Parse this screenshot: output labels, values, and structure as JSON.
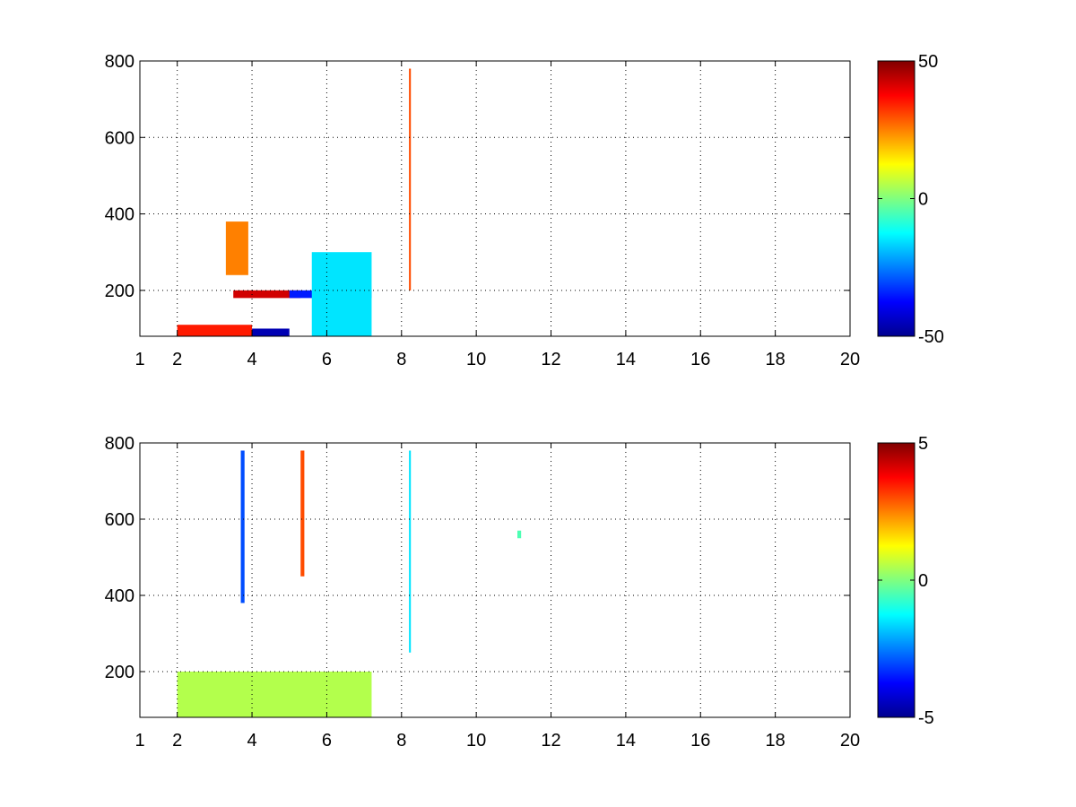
{
  "chart_data": [
    {
      "type": "heatmap",
      "title": "",
      "xlabel": "",
      "ylabel": "",
      "xlim": [
        1,
        20
      ],
      "ylim": [
        80,
        800
      ],
      "x_ticks": [
        1,
        2,
        4,
        6,
        8,
        10,
        12,
        14,
        16,
        18,
        20
      ],
      "x_tick_labels": [
        "1",
        "2",
        "4",
        "6",
        "8",
        "10",
        "12",
        "14",
        "16",
        "18",
        "20"
      ],
      "y_ticks": [
        200,
        400,
        600,
        800
      ],
      "y_tick_labels": [
        "200",
        "400",
        "600",
        "800"
      ],
      "grid": true,
      "colormap": "jet",
      "colorbar": {
        "range": [
          -50,
          50
        ],
        "ticks": [
          50,
          0,
          -50
        ],
        "tick_labels": [
          "50",
          "0",
          "-50"
        ]
      },
      "missing_color": "#ffffff",
      "columns": [
        {
          "x0": 2.0,
          "x1": 4.0,
          "y0": 80,
          "y1": 110,
          "value": 35
        },
        {
          "x0": 3.5,
          "x1": 5.3,
          "y0": 180,
          "y1": 200,
          "value": 42
        },
        {
          "x0": 4.0,
          "x1": 5.0,
          "y0": 80,
          "y1": 100,
          "value": -45
        },
        {
          "x0": 5.0,
          "x1": 7.2,
          "y0": 180,
          "y1": 200,
          "value": -35
        },
        {
          "x0": 3.3,
          "x1": 3.9,
          "y0": 240,
          "y1": 380,
          "value": 25
        },
        {
          "x0": 8.2,
          "x1": 8.25,
          "y0": 200,
          "y1": 780,
          "value": 30
        },
        {
          "x0": 5.6,
          "x1": 7.2,
          "y0": 80,
          "y1": 300,
          "value": -15
        }
      ]
    },
    {
      "type": "heatmap",
      "title": "",
      "xlabel": "",
      "ylabel": "",
      "xlim": [
        1,
        20
      ],
      "ylim": [
        80,
        800
      ],
      "x_ticks": [
        1,
        2,
        4,
        6,
        8,
        10,
        12,
        14,
        16,
        18,
        20
      ],
      "x_tick_labels": [
        "1",
        "2",
        "4",
        "6",
        "8",
        "10",
        "12",
        "14",
        "16",
        "18",
        "20"
      ],
      "y_ticks": [
        200,
        400,
        600,
        800
      ],
      "y_tick_labels": [
        "200",
        "400",
        "600",
        "800"
      ],
      "grid": true,
      "colormap": "jet",
      "colorbar": {
        "range": [
          -5,
          5
        ],
        "ticks": [
          5,
          0,
          -5
        ],
        "tick_labels": [
          "5",
          "0",
          "-5"
        ]
      },
      "missing_color": "#ffffff",
      "columns": [
        {
          "x0": 2.0,
          "x1": 7.2,
          "y0": 80,
          "y1": 200,
          "value": 0.5
        },
        {
          "x0": 3.7,
          "x1": 3.8,
          "y0": 380,
          "y1": 780,
          "value": -3
        },
        {
          "x0": 5.3,
          "x1": 5.4,
          "y0": 450,
          "y1": 780,
          "value": 3
        },
        {
          "x0": 8.2,
          "x1": 8.25,
          "y0": 250,
          "y1": 780,
          "value": -1.5
        },
        {
          "x0": 11.1,
          "x1": 11.2,
          "y0": 550,
          "y1": 570,
          "value": -0.5
        }
      ]
    }
  ]
}
